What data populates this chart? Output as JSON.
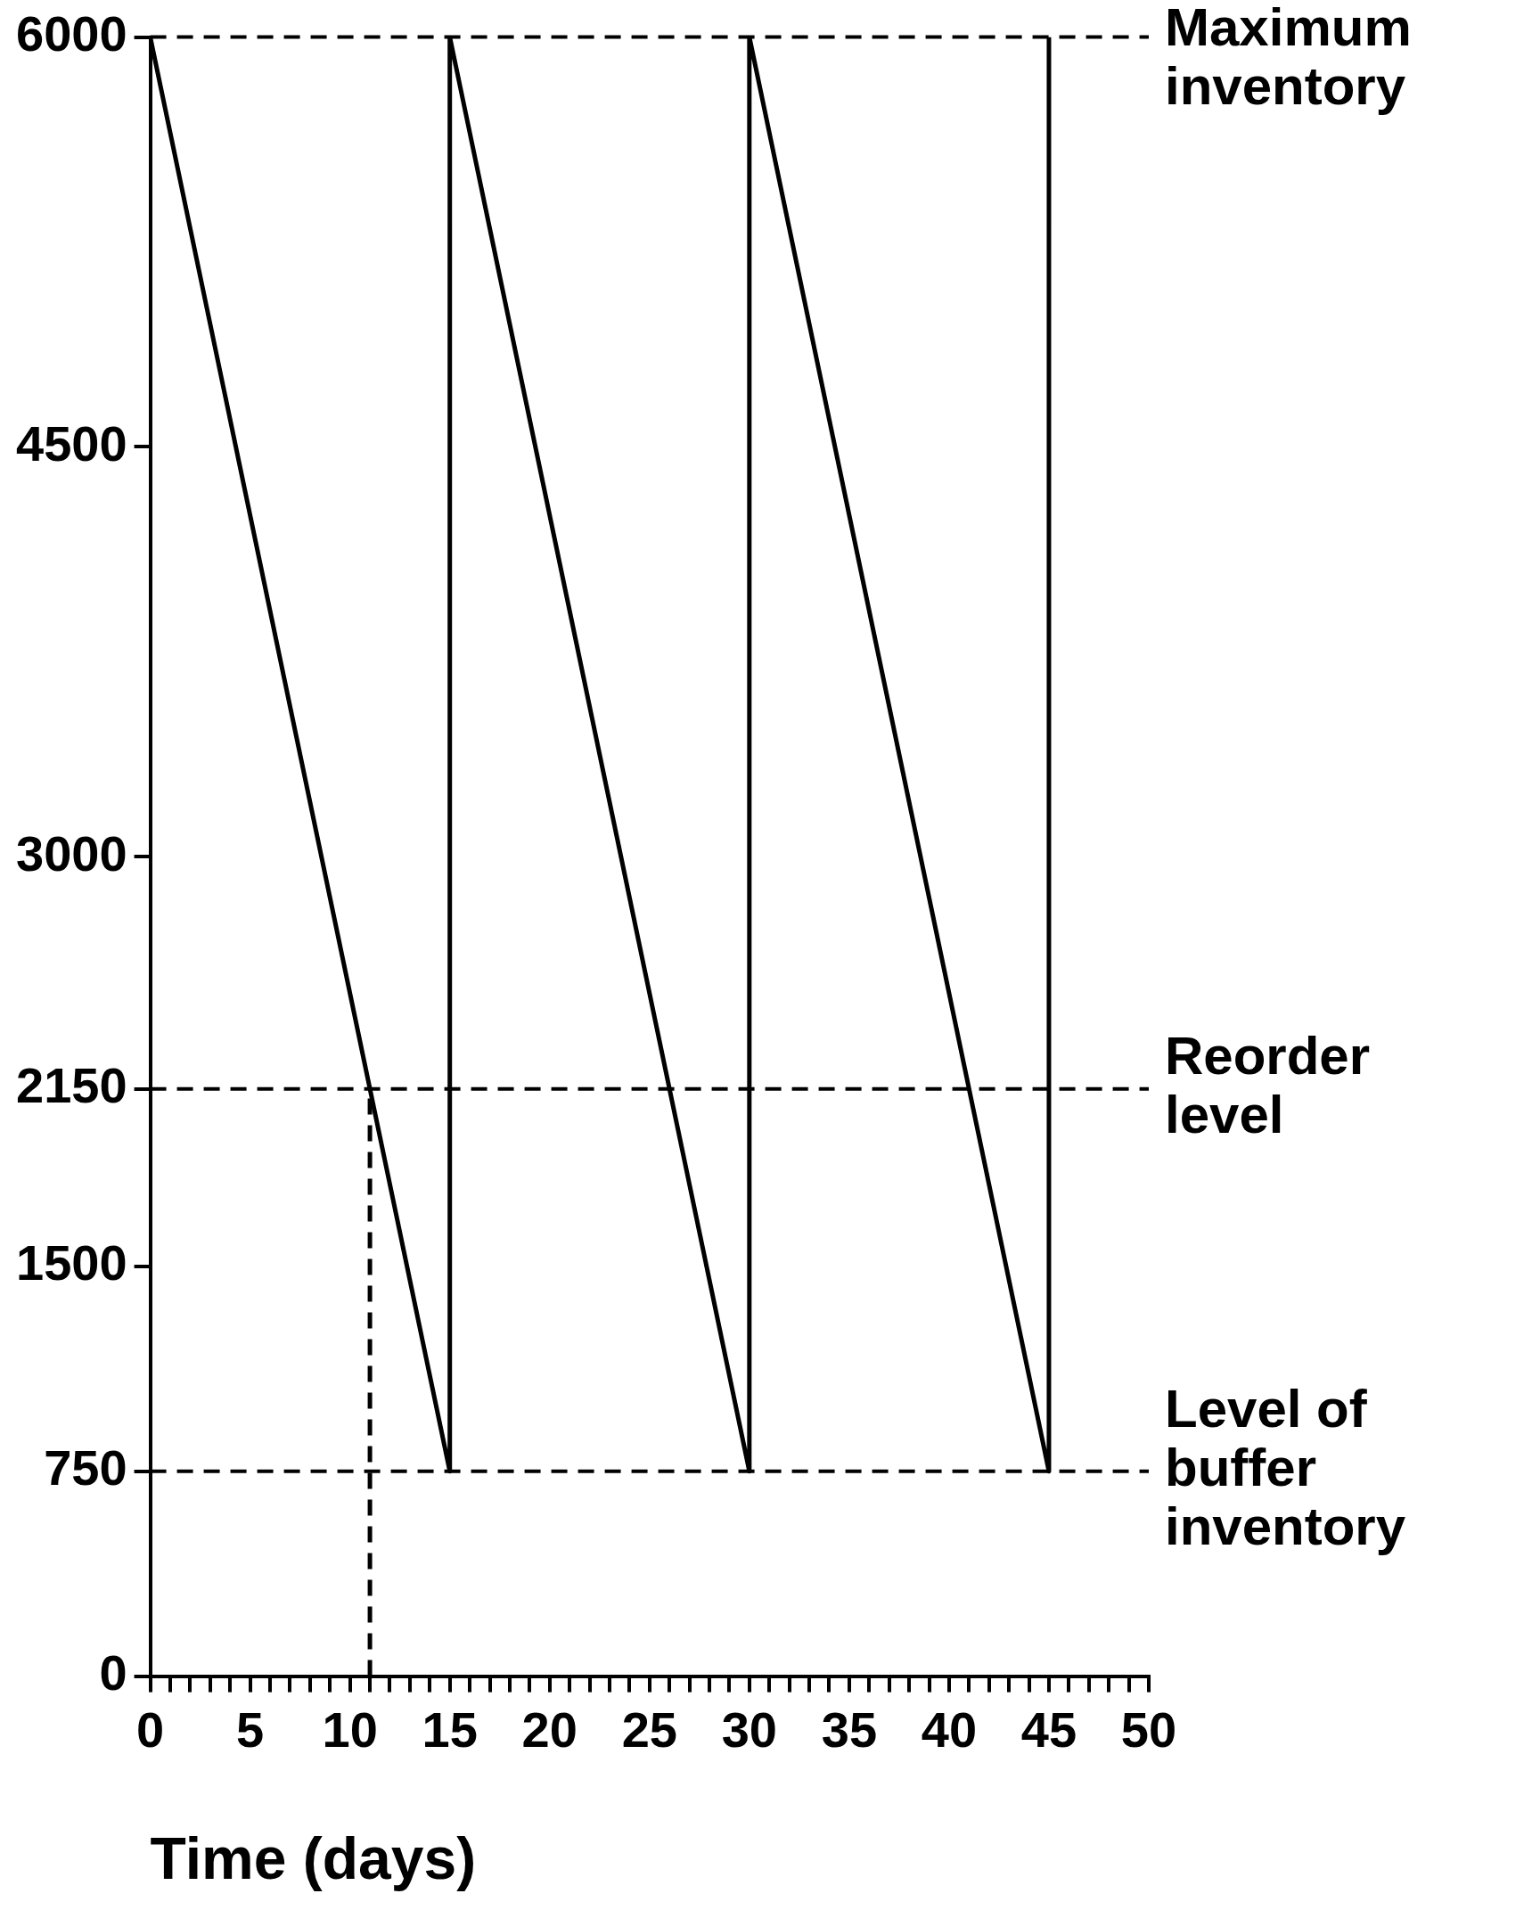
{
  "chart_data": {
    "type": "line",
    "xlabel": "Time (days)",
    "x": [
      0,
      15,
      15,
      30,
      30,
      45,
      45
    ],
    "series": [
      {
        "color": "#000000",
        "values": [
          6000,
          750,
          6000,
          750,
          6000,
          750,
          6000
        ]
      },
      {
        "color": "#000000",
        "x": [
          11,
          11
        ],
        "values": [
          0,
          2150
        ],
        "line_style": "dashed"
      }
    ],
    "xlim": [
      0,
      50
    ],
    "xticks": [
      0,
      {
        "value": 1,
        "label": null
      },
      {
        "value": 2,
        "label": null
      },
      {
        "value": 3,
        "label": null
      },
      {
        "value": 4,
        "label": null
      },
      5,
      {
        "value": 6,
        "label": null
      },
      {
        "value": 7,
        "label": null
      },
      {
        "value": 8,
        "label": null
      },
      {
        "value": 9,
        "label": null
      },
      10,
      {
        "value": 11,
        "label": null
      },
      {
        "value": 12,
        "label": null
      },
      {
        "value": 13,
        "label": null
      },
      {
        "value": 14,
        "label": null
      },
      15,
      {
        "value": 16,
        "label": null
      },
      {
        "value": 17,
        "label": null
      },
      {
        "value": 18,
        "label": null
      },
      {
        "value": 19,
        "label": null
      },
      20,
      {
        "value": 21,
        "label": null
      },
      {
        "value": 22,
        "label": null
      },
      {
        "value": 23,
        "label": null
      },
      {
        "value": 24,
        "label": null
      },
      25,
      {
        "value": 26,
        "label": null
      },
      {
        "value": 27,
        "label": null
      },
      {
        "value": 28,
        "label": null
      },
      {
        "value": 29,
        "label": null
      },
      30,
      {
        "value": 31,
        "label": null
      },
      {
        "value": 32,
        "label": null
      },
      {
        "value": 33,
        "label": null
      },
      {
        "value": 34,
        "label": null
      },
      35,
      {
        "value": 36,
        "label": null
      },
      {
        "value": 37,
        "label": null
      },
      {
        "value": 38,
        "label": null
      },
      {
        "value": 39,
        "label": null
      },
      40,
      {
        "value": 41,
        "label": null
      },
      {
        "value": 42,
        "label": null
      },
      {
        "value": 43,
        "label": null
      },
      {
        "value": 44,
        "label": null
      },
      45,
      {
        "value": 46,
        "label": null
      },
      {
        "value": 47,
        "label": null
      },
      {
        "value": 48,
        "label": null
      },
      {
        "value": 49,
        "label": null
      },
      50
    ],
    "ylim": [
      0,
      6000
    ],
    "yticks": [
      0,
      750,
      1500,
      2150,
      3000,
      4500,
      6000
    ],
    "ref_lines": [
      {
        "axis": "y",
        "value": 6000,
        "label": "Maximum inventory",
        "color": "#000000",
        "line_style": "dashed"
      },
      {
        "axis": "y",
        "value": 2150,
        "label": "Reorder level",
        "color": "#000000",
        "line_style": "dashed"
      },
      {
        "axis": "y",
        "value": 750,
        "label": "Level of buffer inventory",
        "color": "#000000",
        "line_style": "dashed"
      }
    ],
    "grid": false,
    "legend": false
  }
}
